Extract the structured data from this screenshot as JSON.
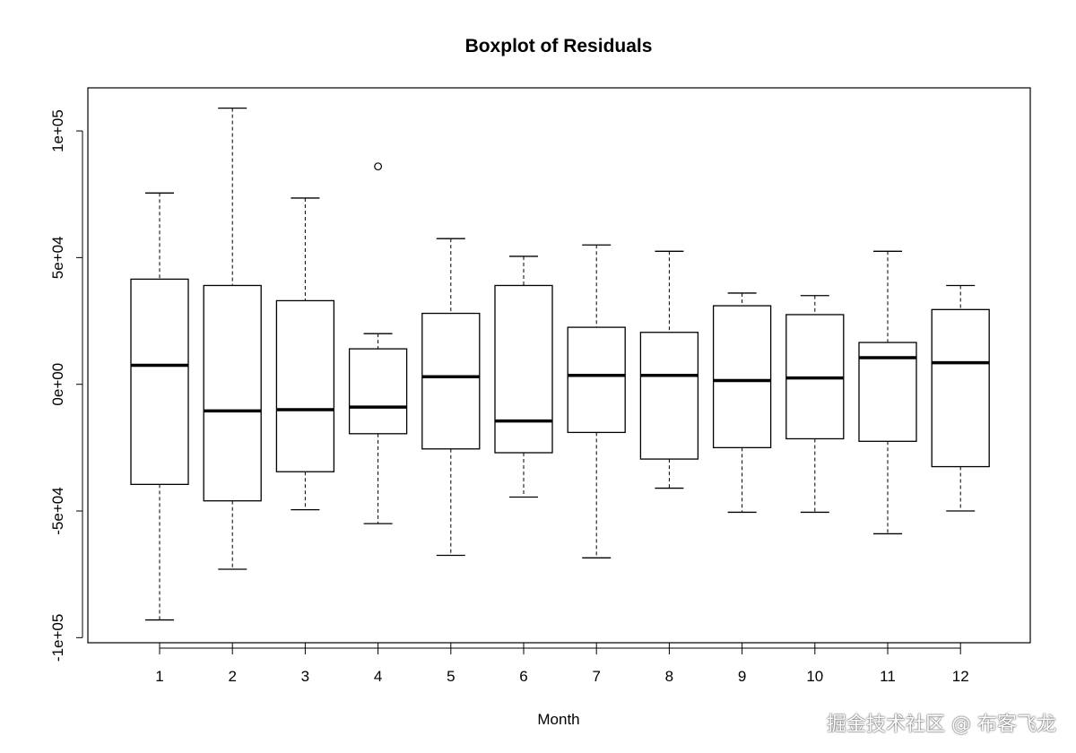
{
  "chart_data": {
    "type": "boxplot",
    "title": "Boxplot of Residuals",
    "xlabel": "Month",
    "ylabel": "",
    "ylim": [
      -102000,
      117000
    ],
    "yticks": [
      {
        "value": 100000,
        "label": "1e+05"
      },
      {
        "value": 50000,
        "label": "5e+04"
      },
      {
        "value": 0,
        "label": "0e+00"
      },
      {
        "value": -50000,
        "label": "-5e+04"
      },
      {
        "value": -100000,
        "label": "-1e+05"
      }
    ],
    "categories": [
      "1",
      "2",
      "3",
      "4",
      "5",
      "6",
      "7",
      "8",
      "9",
      "10",
      "11",
      "12"
    ],
    "boxes": [
      {
        "month": "1",
        "min": -93000,
        "q1": -39500,
        "median": 7500,
        "q3": 41500,
        "max": 75500,
        "outliers": []
      },
      {
        "month": "2",
        "min": -73000,
        "q1": -46000,
        "median": -10500,
        "q3": 39000,
        "max": 109000,
        "outliers": []
      },
      {
        "month": "3",
        "min": -49500,
        "q1": -34500,
        "median": -10000,
        "q3": 33000,
        "max": 73500,
        "outliers": []
      },
      {
        "month": "4",
        "min": -55000,
        "q1": -19500,
        "median": -9000,
        "q3": 14000,
        "max": 20000,
        "outliers": [
          86000
        ]
      },
      {
        "month": "5",
        "min": -67500,
        "q1": -25500,
        "median": 3000,
        "q3": 28000,
        "max": 57500,
        "outliers": []
      },
      {
        "month": "6",
        "min": -44500,
        "q1": -27000,
        "median": -14500,
        "q3": 39000,
        "max": 50500,
        "outliers": []
      },
      {
        "month": "7",
        "min": -68500,
        "q1": -19000,
        "median": 3500,
        "q3": 22500,
        "max": 55000,
        "outliers": []
      },
      {
        "month": "8",
        "min": -41000,
        "q1": -29500,
        "median": 3500,
        "q3": 20500,
        "max": 52500,
        "outliers": []
      },
      {
        "month": "9",
        "min": -50500,
        "q1": -25000,
        "median": 1500,
        "q3": 31000,
        "max": 36000,
        "outliers": []
      },
      {
        "month": "10",
        "min": -50500,
        "q1": -21500,
        "median": 2500,
        "q3": 27500,
        "max": 35000,
        "outliers": []
      },
      {
        "month": "11",
        "min": -59000,
        "q1": -22500,
        "median": 10500,
        "q3": 16500,
        "max": 52500,
        "outliers": []
      },
      {
        "month": "12",
        "min": -50000,
        "q1": -32500,
        "median": 8500,
        "q3": 29500,
        "max": 39000,
        "outliers": []
      }
    ],
    "grid": false,
    "legend": "none"
  },
  "watermark": "掘金技术社区 @ 布客飞龙"
}
